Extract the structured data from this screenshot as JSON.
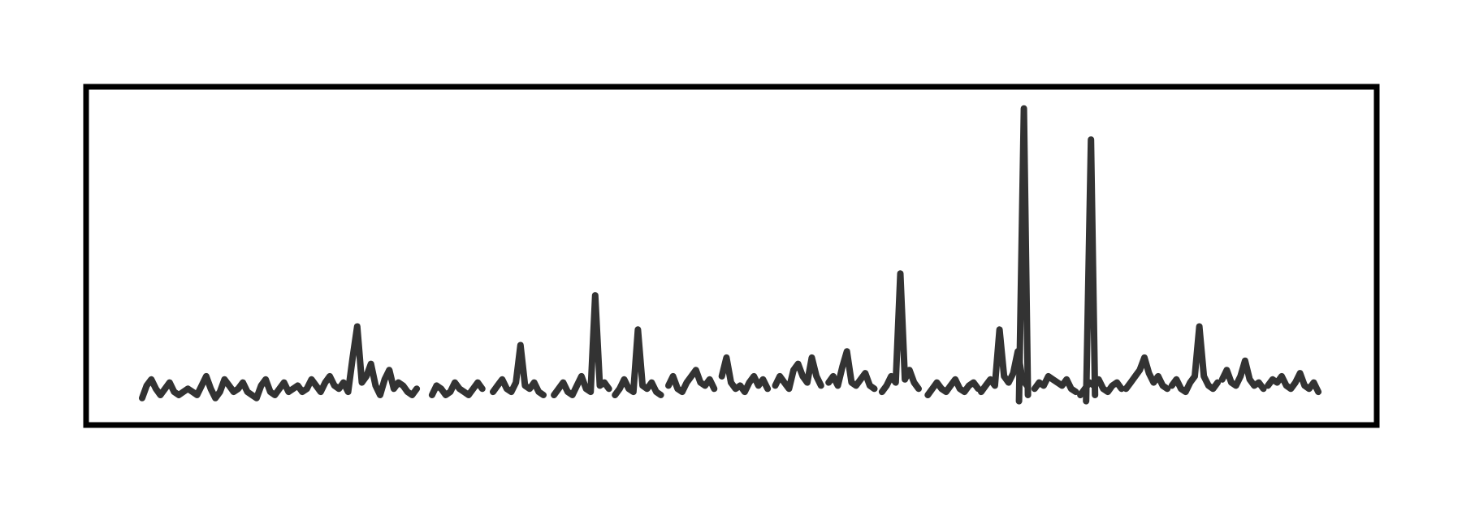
{
  "chart_data": {
    "type": "line",
    "title": "",
    "xlabel": "",
    "ylabel": "",
    "axes_visible": false,
    "grid": false,
    "legend": "none",
    "xlim": [
      0,
      78
    ],
    "ylim": [
      0,
      100
    ],
    "color": "#333333",
    "frame_color": "#000000",
    "series": [
      {
        "segments": [
          [
            [
              0.0,
              5
            ],
            [
              0.3,
              9
            ],
            [
              0.6,
              11
            ],
            [
              0.9,
              8
            ],
            [
              1.2,
              6
            ],
            [
              1.5,
              8
            ],
            [
              1.8,
              10
            ],
            [
              2.1,
              7
            ],
            [
              2.4,
              6
            ],
            [
              2.7,
              7
            ],
            [
              3.0,
              8
            ],
            [
              3.3,
              7
            ],
            [
              3.6,
              6
            ],
            [
              3.9,
              9
            ],
            [
              4.2,
              12
            ],
            [
              4.5,
              8
            ],
            [
              4.8,
              5
            ],
            [
              5.1,
              7
            ],
            [
              5.4,
              11
            ],
            [
              5.7,
              9
            ],
            [
              6.0,
              7
            ],
            [
              6.3,
              8
            ],
            [
              6.6,
              10
            ],
            [
              6.9,
              7
            ],
            [
              7.2,
              6
            ],
            [
              7.5,
              5
            ],
            [
              7.8,
              9
            ],
            [
              8.1,
              11
            ],
            [
              8.4,
              7
            ],
            [
              8.7,
              6
            ],
            [
              9.0,
              8
            ],
            [
              9.3,
              10
            ],
            [
              9.6,
              7
            ],
            [
              9.9,
              8
            ],
            [
              10.2,
              9
            ],
            [
              10.5,
              7
            ],
            [
              10.8,
              8
            ],
            [
              11.1,
              11
            ],
            [
              11.4,
              9
            ],
            [
              11.7,
              7
            ],
            [
              12.0,
              10
            ],
            [
              12.3,
              12
            ],
            [
              12.6,
              9
            ],
            [
              12.9,
              8
            ],
            [
              13.2,
              10
            ],
            [
              13.5,
              7
            ],
            [
              13.8,
              18
            ],
            [
              14.1,
              28
            ],
            [
              14.4,
              10
            ],
            [
              14.7,
              12
            ],
            [
              15.0,
              16
            ],
            [
              15.3,
              9
            ],
            [
              15.6,
              6
            ],
            [
              15.9,
              11
            ],
            [
              16.2,
              14
            ],
            [
              16.5,
              8
            ],
            [
              16.8,
              10
            ],
            [
              17.1,
              9
            ],
            [
              17.4,
              7
            ],
            [
              17.7,
              6
            ],
            [
              18.0,
              8
            ]
          ],
          [
            [
              19.0,
              6
            ],
            [
              19.3,
              9
            ],
            [
              19.6,
              8
            ],
            [
              19.9,
              6
            ],
            [
              20.2,
              7
            ],
            [
              20.5,
              10
            ],
            [
              20.8,
              8
            ],
            [
              21.1,
              7
            ],
            [
              21.4,
              6
            ],
            [
              21.7,
              8
            ],
            [
              22.0,
              10
            ],
            [
              22.3,
              8
            ]
          ],
          [
            [
              23.0,
              7
            ],
            [
              23.3,
              9
            ],
            [
              23.6,
              11
            ],
            [
              23.9,
              8
            ],
            [
              24.2,
              7
            ],
            [
              24.5,
              10
            ],
            [
              24.8,
              22
            ],
            [
              25.1,
              9
            ],
            [
              25.4,
              8
            ],
            [
              25.7,
              10
            ],
            [
              26.0,
              7
            ],
            [
              26.3,
              6
            ]
          ],
          [
            [
              27.0,
              6
            ],
            [
              27.3,
              8
            ],
            [
              27.6,
              10
            ],
            [
              27.9,
              7
            ],
            [
              28.2,
              6
            ],
            [
              28.5,
              9
            ],
            [
              28.8,
              12
            ],
            [
              29.1,
              8
            ],
            [
              29.4,
              7
            ],
            [
              29.7,
              38
            ],
            [
              30.0,
              9
            ],
            [
              30.3,
              10
            ],
            [
              30.6,
              8
            ]
          ],
          [
            [
              31.0,
              6
            ],
            [
              31.3,
              8
            ],
            [
              31.6,
              11
            ],
            [
              31.9,
              8
            ],
            [
              32.2,
              7
            ],
            [
              32.5,
              27
            ],
            [
              32.8,
              9
            ],
            [
              33.1,
              8
            ],
            [
              33.4,
              10
            ],
            [
              33.7,
              7
            ],
            [
              34.0,
              6
            ]
          ],
          [
            [
              34.5,
              9
            ],
            [
              34.8,
              12
            ],
            [
              35.1,
              8
            ],
            [
              35.4,
              7
            ],
            [
              35.7,
              10
            ],
            [
              36.0,
              12
            ],
            [
              36.3,
              14
            ],
            [
              36.6,
              10
            ],
            [
              36.9,
              9
            ],
            [
              37.2,
              11
            ],
            [
              37.5,
              8
            ]
          ],
          [
            [
              38.0,
              12
            ],
            [
              38.3,
              18
            ],
            [
              38.6,
              10
            ],
            [
              38.9,
              8
            ],
            [
              39.2,
              9
            ],
            [
              39.5,
              7
            ],
            [
              39.8,
              10
            ],
            [
              40.1,
              12
            ],
            [
              40.4,
              9
            ],
            [
              40.7,
              11
            ],
            [
              41.0,
              8
            ]
          ],
          [
            [
              41.5,
              9
            ],
            [
              41.8,
              12
            ],
            [
              42.1,
              10
            ],
            [
              42.4,
              8
            ],
            [
              42.7,
              14
            ],
            [
              43.0,
              16
            ],
            [
              43.3,
              12
            ],
            [
              43.6,
              10
            ],
            [
              43.9,
              18
            ],
            [
              44.2,
              12
            ],
            [
              44.5,
              9
            ]
          ],
          [
            [
              45.0,
              10
            ],
            [
              45.3,
              12
            ],
            [
              45.6,
              9
            ],
            [
              45.9,
              15
            ],
            [
              46.2,
              20
            ],
            [
              46.5,
              10
            ],
            [
              46.8,
              9
            ],
            [
              47.1,
              11
            ],
            [
              47.4,
              13
            ],
            [
              47.7,
              9
            ],
            [
              48.0,
              8
            ]
          ],
          [
            [
              48.5,
              7
            ],
            [
              48.8,
              9
            ],
            [
              49.1,
              12
            ],
            [
              49.4,
              10
            ],
            [
              49.7,
              45
            ],
            [
              50.0,
              11
            ],
            [
              50.3,
              14
            ],
            [
              50.6,
              10
            ],
            [
              50.9,
              8
            ]
          ],
          [
            [
              51.5,
              6
            ],
            [
              51.8,
              8
            ],
            [
              52.1,
              10
            ],
            [
              52.4,
              8
            ],
            [
              52.7,
              7
            ],
            [
              53.0,
              9
            ],
            [
              53.3,
              11
            ],
            [
              53.6,
              8
            ],
            [
              53.9,
              7
            ],
            [
              54.2,
              9
            ],
            [
              54.5,
              10
            ],
            [
              54.8,
              8
            ]
          ],
          [
            [
              55.0,
              7
            ],
            [
              55.3,
              9
            ],
            [
              55.6,
              11
            ],
            [
              55.9,
              9
            ],
            [
              56.2,
              27
            ],
            [
              56.5,
              12
            ],
            [
              56.8,
              10
            ],
            [
              57.1,
              13
            ],
            [
              57.4,
              20
            ],
            [
              57.7,
              11
            ],
            [
              58.0,
              9
            ]
          ],
          [
            [
              58.5,
              8
            ],
            [
              58.8,
              10
            ],
            [
              59.1,
              9
            ],
            [
              59.4,
              12
            ],
            [
              59.7,
              11
            ],
            [
              60.0,
              10
            ],
            [
              60.3,
              9
            ],
            [
              60.6,
              11
            ],
            [
              60.9,
              8
            ],
            [
              61.2,
              7
            ]
          ],
          [
            [
              61.5,
              6
            ],
            [
              61.8,
              8
            ],
            [
              62.1,
              10
            ],
            [
              62.4,
              9
            ],
            [
              62.7,
              11
            ],
            [
              63.0,
              8
            ],
            [
              63.3,
              7
            ],
            [
              63.6,
              9
            ],
            [
              63.9,
              10
            ],
            [
              64.2,
              8
            ]
          ],
          [
            [
              64.5,
              8
            ],
            [
              64.8,
              10
            ],
            [
              65.1,
              12
            ],
            [
              65.4,
              14
            ],
            [
              65.7,
              18
            ],
            [
              66.0,
              13
            ],
            [
              66.3,
              10
            ],
            [
              66.6,
              12
            ],
            [
              66.9,
              9
            ],
            [
              67.2,
              8
            ]
          ],
          [
            [
              67.5,
              9
            ],
            [
              67.8,
              11
            ],
            [
              68.1,
              8
            ],
            [
              68.4,
              7
            ],
            [
              68.7,
              10
            ],
            [
              69.0,
              12
            ],
            [
              69.3,
              28
            ],
            [
              69.6,
              12
            ],
            [
              69.9,
              9
            ],
            [
              70.2,
              8
            ],
            [
              70.5,
              10
            ]
          ],
          [
            [
              70.8,
              11
            ],
            [
              71.1,
              14
            ],
            [
              71.4,
              10
            ],
            [
              71.7,
              9
            ],
            [
              72.0,
              12
            ],
            [
              72.3,
              17
            ],
            [
              72.6,
              11
            ],
            [
              72.9,
              9
            ],
            [
              73.2,
              10
            ],
            [
              73.5,
              8
            ]
          ],
          [
            [
              73.8,
              9
            ],
            [
              74.1,
              11
            ],
            [
              74.4,
              10
            ],
            [
              74.7,
              12
            ],
            [
              75.0,
              9
            ],
            [
              75.3,
              8
            ],
            [
              75.6,
              10
            ],
            [
              75.9,
              13
            ],
            [
              76.2,
              9
            ],
            [
              76.5,
              8
            ],
            [
              76.8,
              10
            ],
            [
              77.1,
              7
            ]
          ]
        ]
      }
    ],
    "peaks": [
      {
        "x": 57.8,
        "y": 98
      },
      {
        "x": 62.2,
        "y": 88
      }
    ]
  }
}
